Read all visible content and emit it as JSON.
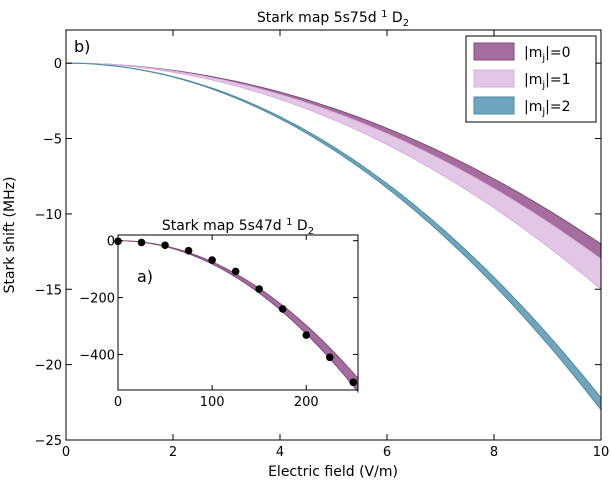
{
  "chart_data": [
    {
      "type": "area",
      "panel_label": "b)",
      "title_main": "Stark map 5s75d ",
      "title_sup": "1",
      "title_term": " D",
      "title_sub": "2",
      "xlabel": "Electric field (V/m)",
      "ylabel": "Stark shift (MHz)",
      "xlim": [
        0,
        10
      ],
      "ylim": [
        -25,
        2.2
      ],
      "xticks": [
        "0",
        "2",
        "4",
        "6",
        "8",
        "10"
      ],
      "yticks": [
        "0",
        "−5",
        "−10",
        "−15",
        "−20",
        "−25"
      ],
      "legend_position": "top-right",
      "x": [
        0,
        1,
        2,
        3,
        4,
        5,
        6,
        7,
        8,
        9,
        10
      ],
      "series": [
        {
          "name": "|mj|=0",
          "legend_pre": "|m",
          "legend_sub": "j",
          "legend_post": "|=0",
          "color": "#a56d9e",
          "edge": "#7f4c79",
          "lower": [
            0,
            -0.13,
            -0.53,
            -1.2,
            -2.13,
            -3.32,
            -4.78,
            -6.51,
            -8.5,
            -10.76,
            -13.28
          ],
          "upper": [
            0,
            -0.12,
            -0.48,
            -1.08,
            -1.92,
            -3.0,
            -4.32,
            -5.88,
            -7.68,
            -9.72,
            -12.0
          ]
        },
        {
          "name": "|mj|=1",
          "legend_pre": "|m",
          "legend_sub": "j",
          "legend_post": "|=1",
          "color": "#e3c6e6",
          "edge": "#d6b1da",
          "lower": [
            0,
            -0.15,
            -0.6,
            -1.35,
            -2.4,
            -3.75,
            -5.4,
            -7.35,
            -9.6,
            -12.15,
            -15.0
          ],
          "upper": [
            0,
            -0.13,
            -0.52,
            -1.17,
            -2.08,
            -3.25,
            -4.68,
            -6.37,
            -8.32,
            -10.53,
            -13.0
          ]
        },
        {
          "name": "|mj|=2",
          "legend_pre": "|m",
          "legend_sub": "j",
          "legend_post": "|=2",
          "color": "#6fa6bd",
          "edge": "#4d8aa3",
          "lower": [
            0,
            -0.23,
            -0.92,
            -2.07,
            -3.68,
            -5.75,
            -8.28,
            -11.27,
            -14.72,
            -18.63,
            -23.0
          ],
          "upper": [
            0,
            -0.22,
            -0.89,
            -2.0,
            -3.55,
            -5.55,
            -7.99,
            -10.87,
            -14.2,
            -17.97,
            -22.2
          ]
        }
      ]
    },
    {
      "type": "scatter",
      "panel_label": "a)",
      "title_main": "Stark map 5s47d ",
      "title_sup": "1",
      "title_term": " D",
      "title_sub": "2",
      "xlim": [
        0,
        255
      ],
      "ylim": [
        -525,
        20
      ],
      "xticks": [
        "0",
        "100",
        "200"
      ],
      "yticks": [
        "0",
        "−200",
        "−400"
      ],
      "band": {
        "color": "#a56d9e",
        "x": [
          0,
          25,
          50,
          75,
          100,
          125,
          150,
          175,
          200,
          225,
          255
        ],
        "lower": [
          0,
          -5.1,
          -20.5,
          -46.0,
          -81.9,
          -127.9,
          -184.2,
          -250.7,
          -327.5,
          -414.5,
          -532.0
        ],
        "upper": [
          0,
          -4.6,
          -18.6,
          -41.8,
          -74.4,
          -116.3,
          -167.4,
          -227.9,
          -297.7,
          -376.8,
          -484.0
        ]
      },
      "points": {
        "x": [
          0,
          25,
          50,
          75,
          100,
          125,
          150,
          175,
          200,
          225,
          250
        ],
        "y": [
          -2,
          -6,
          -16,
          -35,
          -68,
          -108,
          -170,
          -240,
          -332,
          -410,
          -498
        ]
      }
    }
  ]
}
